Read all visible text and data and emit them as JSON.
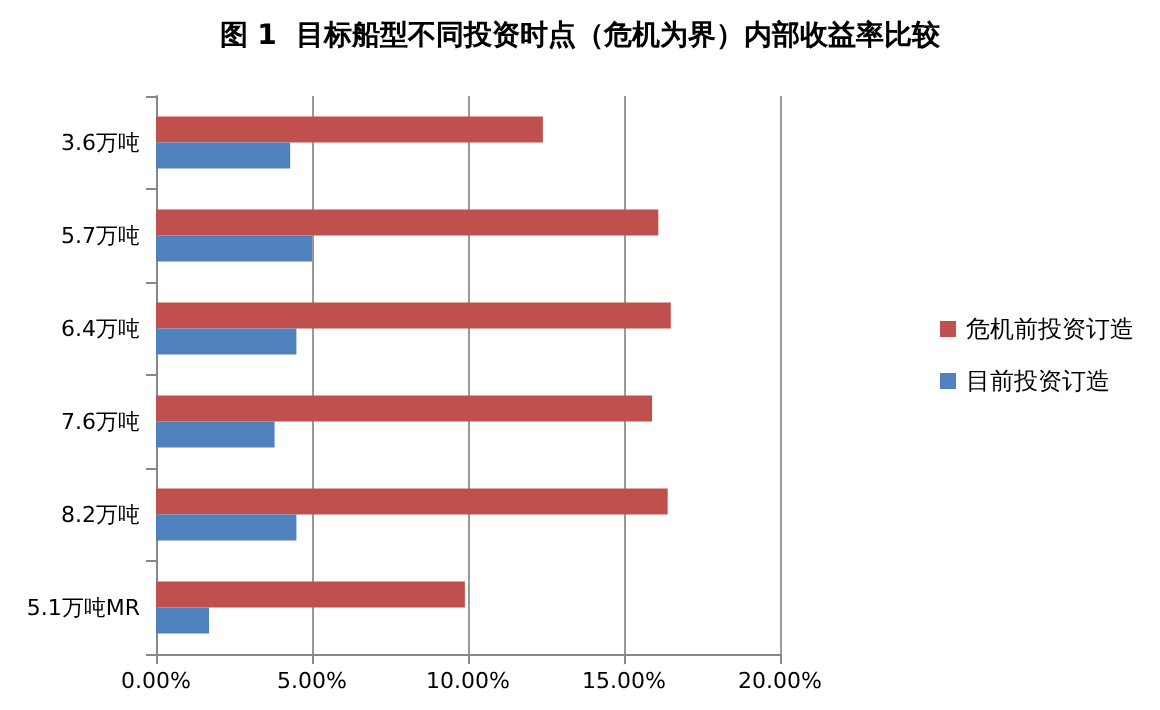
{
  "chart_data": {
    "type": "bar",
    "orientation": "horizontal",
    "title": "图 1  目标船型不同投资时点（危机为界）内部收益率比较",
    "categories": [
      "3.6万吨",
      "5.7万吨",
      "6.4万吨",
      "7.6万吨",
      "8.2万吨",
      "5.1万吨MR"
    ],
    "series": [
      {
        "name": "危机前投资订造",
        "color": "#c0504d",
        "values": [
          12.4,
          16.1,
          16.5,
          15.9,
          16.4,
          9.9
        ]
      },
      {
        "name": "目前投资订造",
        "color": "#4f81bd",
        "values": [
          4.3,
          5.0,
          4.5,
          3.8,
          4.5,
          1.7
        ]
      }
    ],
    "xlim": [
      0,
      20
    ],
    "xticks": [
      {
        "value": 0,
        "label": "0.00%"
      },
      {
        "value": 5,
        "label": "5.00%"
      },
      {
        "value": 10,
        "label": "10.00%"
      },
      {
        "value": 15,
        "label": "15.00%"
      },
      {
        "value": 20,
        "label": "20.00%"
      }
    ],
    "grid": "x",
    "legend": "right"
  }
}
